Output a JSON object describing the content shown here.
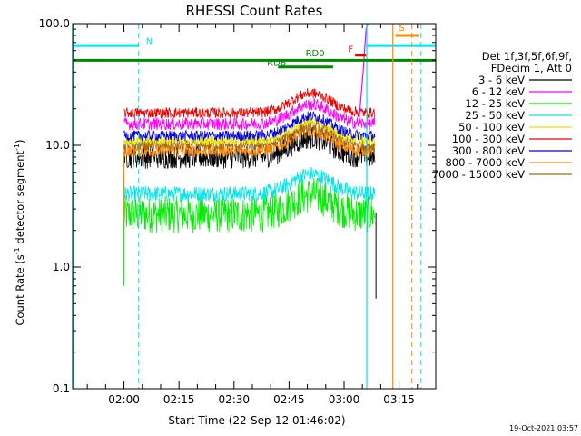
{
  "chart_data": {
    "type": "line",
    "title": "RHESSI Count Rates",
    "xlabel": "Start Time (22-Sep-12 01:46:02)",
    "ylabel_main": "Count Rate (s",
    "ylabel_sup1": "-1",
    "ylabel_mid": " detector segment",
    "ylabel_sup2": "-1",
    "ylabel_end": ")",
    "yscale": "log",
    "ylim": [
      0.1,
      100.0
    ],
    "xlim_minutes": [
      106.0,
      205.0
    ],
    "y_ticks": [
      {
        "value": 100.0,
        "label": "100.0"
      },
      {
        "value": 10.0,
        "label": "10.0"
      },
      {
        "value": 1.0,
        "label": "1.0"
      },
      {
        "value": 0.1,
        "label": "0.1"
      }
    ],
    "x_ticks": [
      {
        "minutes": 120,
        "label": "02:00"
      },
      {
        "minutes": 135,
        "label": "02:15"
      },
      {
        "minutes": 150,
        "label": "02:30"
      },
      {
        "minutes": 165,
        "label": "02:45"
      },
      {
        "minutes": 180,
        "label": "03:00"
      },
      {
        "minutes": 195,
        "label": "03:15"
      }
    ],
    "legend_header": [
      "Det 1f,3f,5f,6f,9f,",
      "FDecim 1, Att 0"
    ],
    "legend_position": "right",
    "series": [
      {
        "name": "3 - 6 keV",
        "color": "#000000",
        "level": 8.0,
        "noise": 0.22
      },
      {
        "name": "6 - 12 keV",
        "color": "#ff00ff",
        "level": 15.0,
        "noise": 0.12
      },
      {
        "name": "12 - 25 keV",
        "color": "#00ee00",
        "level": 2.7,
        "noise": 0.35
      },
      {
        "name": "25 - 50 keV",
        "color": "#00e5e5",
        "level": 4.0,
        "noise": 0.15
      },
      {
        "name": "50 - 100 keV",
        "color": "#e5e500",
        "level": 11.0,
        "noise": 0.1
      },
      {
        "name": "100 - 300 keV",
        "color": "#ee0000",
        "level": 18.5,
        "noise": 0.1
      },
      {
        "name": "300 - 800 keV",
        "color": "#0000ee",
        "level": 12.0,
        "noise": 0.1
      },
      {
        "name": "800 - 7000 keV",
        "color": "#ff8800",
        "level": 9.0,
        "noise": 0.12
      },
      {
        "name": "7000 - 15000 keV",
        "color": "#aa6600",
        "level": 10.0,
        "noise": 0.1
      }
    ],
    "annotations": [
      {
        "label": "N",
        "color": "#00e5e5"
      },
      {
        "label": "RD0",
        "color": "#008800"
      },
      {
        "label": "RD6",
        "color": "#008800"
      },
      {
        "label": "F",
        "color": "#ee0000"
      },
      {
        "label": "S",
        "color": "#ff8800"
      }
    ],
    "grid": false
  },
  "timestamp": "19-Oct-2021 03:57"
}
